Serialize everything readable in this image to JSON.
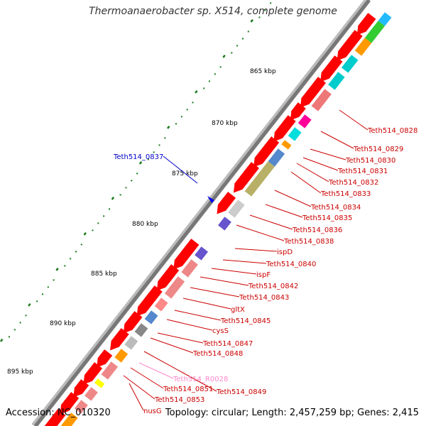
{
  "header": {
    "title": "Thermoanaerobacter sp. X514, complete genome"
  },
  "footer": {
    "accession": "Accession: NC_010320",
    "topology": "Topology: circular; Length: 2,457,259 bp; Genes: 2,415"
  },
  "colors": {
    "cds": "#ff0000",
    "backbone": "#777777",
    "tick": "#1a7a1a",
    "label_red": "#cc0000",
    "label_blue": "#0000cc",
    "label_pink": "#ff88cc"
  },
  "scale_labels": [
    "865 kbp",
    "870 kbp",
    "875 kbp",
    "880 kbp",
    "885 kbp",
    "890 kbp",
    "895 kbp"
  ],
  "gene_labels": [
    {
      "text": "Teth514_0828",
      "color": "red"
    },
    {
      "text": "Teth514_0829",
      "color": "red"
    },
    {
      "text": "Teth514_0830",
      "color": "red"
    },
    {
      "text": "Teth514_0831",
      "color": "red"
    },
    {
      "text": "Teth514_0832",
      "color": "red"
    },
    {
      "text": "Teth514_0833",
      "color": "red"
    },
    {
      "text": "Teth514_0834",
      "color": "red"
    },
    {
      "text": "Teth514_0835",
      "color": "red"
    },
    {
      "text": "Teth514_0836",
      "color": "red"
    },
    {
      "text": "Teth514_0838",
      "color": "red"
    },
    {
      "text": "ispD",
      "color": "red"
    },
    {
      "text": "Teth514_0840",
      "color": "red"
    },
    {
      "text": "ispF",
      "color": "red"
    },
    {
      "text": "Teth514_0842",
      "color": "red"
    },
    {
      "text": "Teth514_0843",
      "color": "red"
    },
    {
      "text": "gltX",
      "color": "red"
    },
    {
      "text": "Teth514_0845",
      "color": "red"
    },
    {
      "text": "cysS",
      "color": "red"
    },
    {
      "text": "Teth514_0847",
      "color": "red"
    },
    {
      "text": "Teth514_0848",
      "color": "red"
    },
    {
      "text": "Teth514_R0028",
      "color": "pink"
    },
    {
      "text": "Teth514_0849",
      "color": "red"
    },
    {
      "text": "Teth514_0851",
      "color": "red"
    },
    {
      "text": "Teth514_0853",
      "color": "red"
    },
    {
      "text": "nusG",
      "color": "red"
    },
    {
      "text": "Teth514_0837",
      "color": "blue"
    }
  ]
}
